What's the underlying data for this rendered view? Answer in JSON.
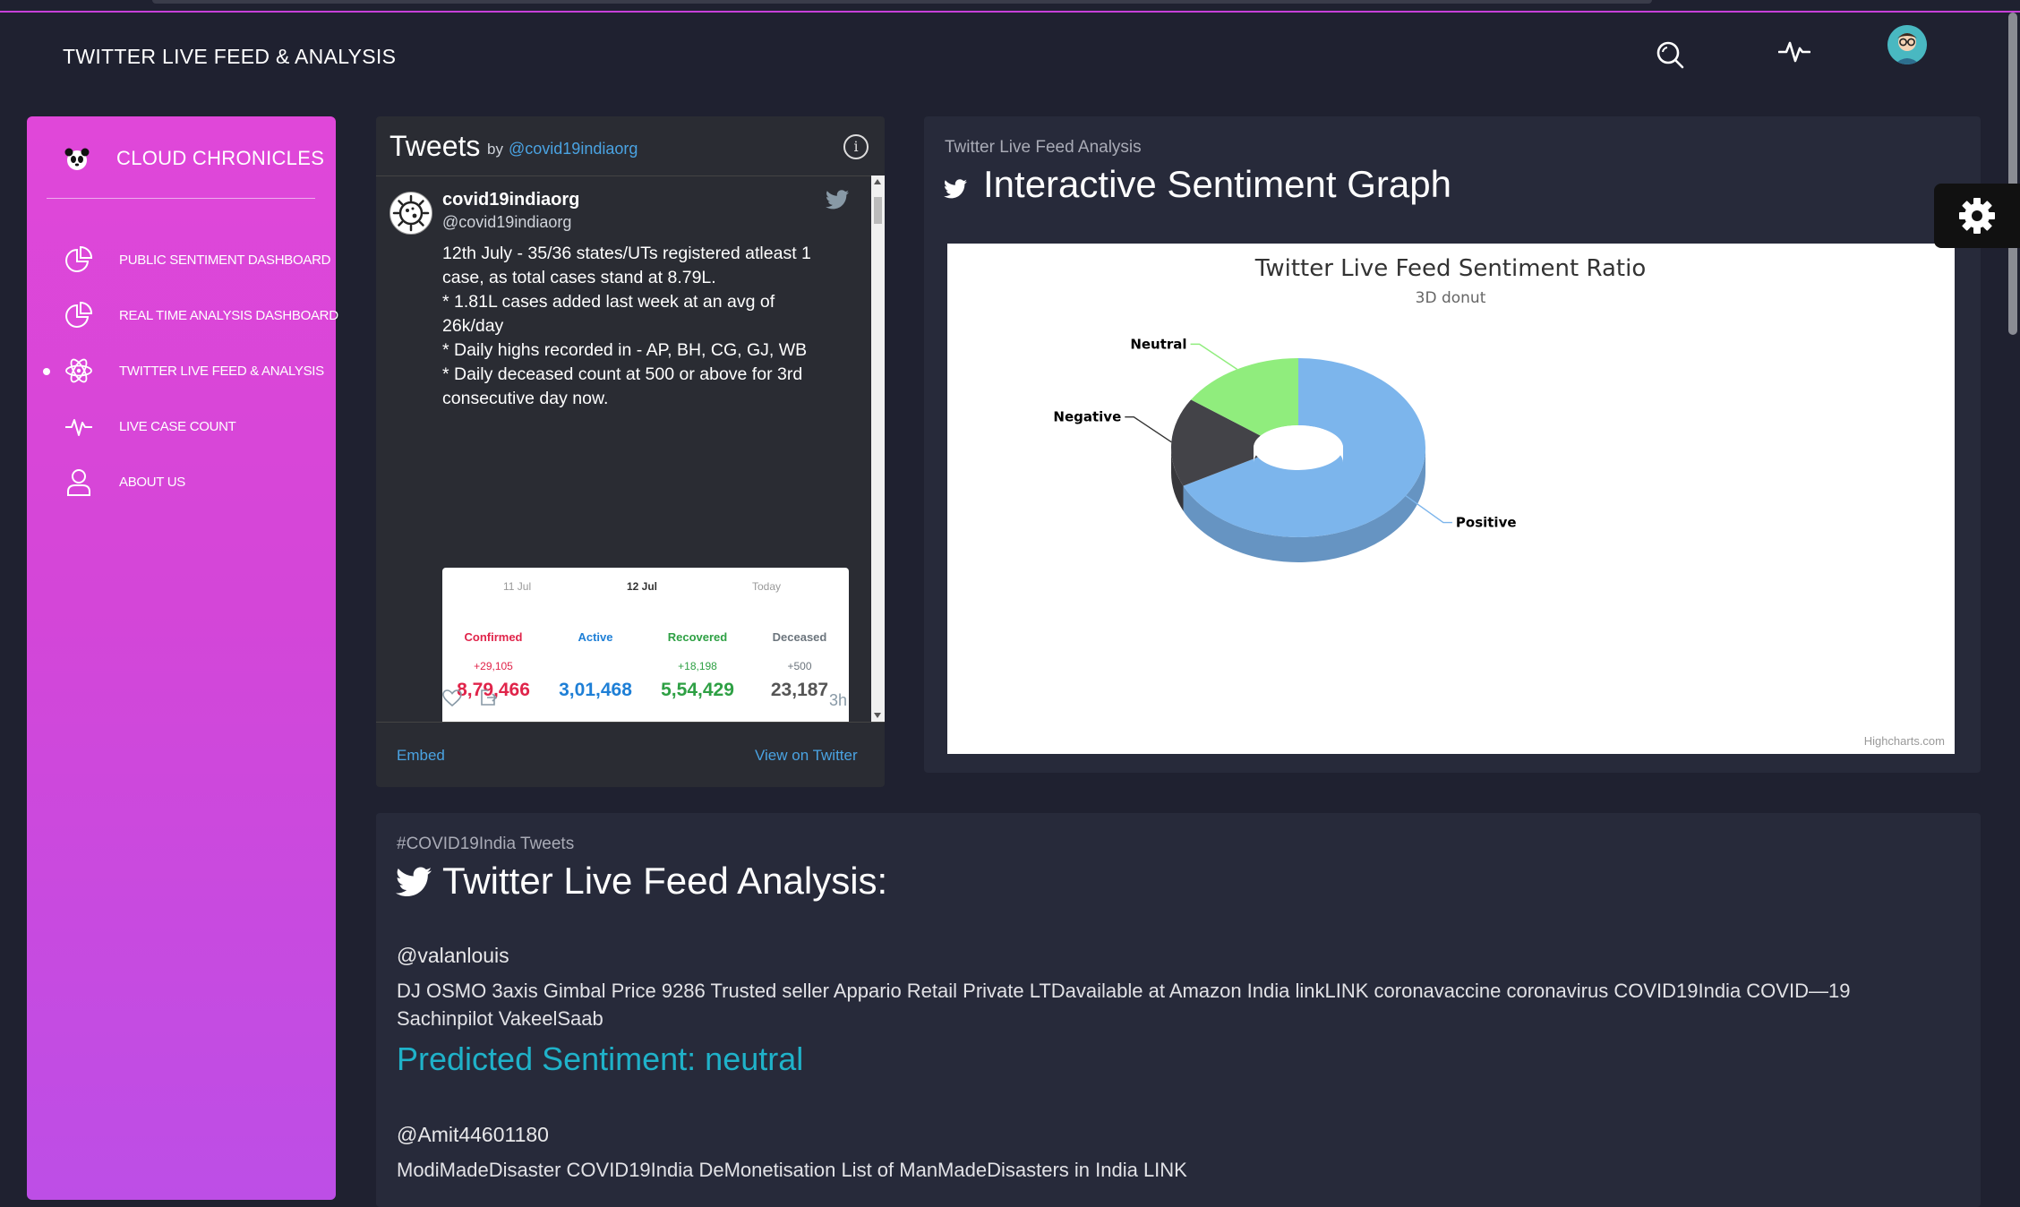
{
  "app": {
    "title": "TWITTER LIVE FEED & ANALYSIS"
  },
  "header_icons": [
    "search-icon",
    "pulse-icon",
    "avatar"
  ],
  "sidebar": {
    "brand": "CLOUD CHRONICLES",
    "items": [
      {
        "label": "PUBLIC SENTIMENT DASHBOARD",
        "icon": "pie-chart-icon",
        "active": false
      },
      {
        "label": "REAL TIME ANALYSIS DASHBOARD",
        "icon": "pie-chart-icon",
        "active": false
      },
      {
        "label": "TWITTER LIVE FEED & ANALYSIS",
        "icon": "atom-icon",
        "active": true
      },
      {
        "label": "LIVE CASE COUNT",
        "icon": "pulse-icon",
        "active": false
      },
      {
        "label": "ABOUT US",
        "icon": "user-icon",
        "active": false
      }
    ]
  },
  "tweets_widget": {
    "title": "Tweets",
    "by": "by",
    "handle_link": "@covid19indiaorg",
    "tweet": {
      "name": "covid19indiaorg",
      "username": "@covid19indiaorg",
      "lines": [
        "12th July - 35/36 states/UTs registered atleast 1",
        "case, as total cases stand at 8.79L.",
        "* 1.81L cases added last week at an avg of",
        "26k/day",
        "* Daily highs recorded in - AP, BH, CG, GJ, WB",
        "* Daily deceased count at 500 or above for 3rd",
        "consecutive day now."
      ],
      "card": {
        "dates": [
          "11 Jul",
          "12 Jul",
          "Today"
        ],
        "stats": [
          {
            "label": "Confirmed",
            "delta": "+29,105",
            "value": "8,79,466",
            "color": "#e0244a"
          },
          {
            "label": "Active",
            "delta": "",
            "value": "3,01,468",
            "color": "#1e7fd6"
          },
          {
            "label": "Recovered",
            "delta": "+18,198",
            "value": "5,54,429",
            "color": "#2ea044"
          },
          {
            "label": "Deceased",
            "delta": "+500",
            "value": "23,187",
            "color": "#6c757d"
          }
        ]
      },
      "time": "3h"
    },
    "embed": "Embed",
    "view_on": "View on Twitter"
  },
  "graph_card": {
    "eyebrow": "Twitter Live Feed Analysis",
    "title": "Interactive Sentiment Graph",
    "credit": "Highcharts.com"
  },
  "chart_data": {
    "type": "pie",
    "title": "Twitter Live Feed Sentiment Ratio",
    "subtitle": "3D donut",
    "slices": [
      {
        "name": "Positive",
        "value": 68,
        "color": "#7cb5ec"
      },
      {
        "name": "Negative",
        "value": 16,
        "color": "#434348"
      },
      {
        "name": "Neutral",
        "value": 16,
        "color": "#90ed7d"
      }
    ]
  },
  "analysis": {
    "eyebrow": "#COVID19India Tweets",
    "title": "Twitter Live Feed Analysis:",
    "tweets": [
      {
        "handle": "@valanlouis",
        "text": "DJ OSMO 3axis Gimbal Price 9286 Trusted seller Appario Retail Private LTDavailable at Amazon India linkLINK coronavaccine coronavirus COVID19India COVID—19 Sachinpilot VakeelSaab",
        "sentiment": "Predicted Sentiment: neutral"
      },
      {
        "handle": "@Amit44601180",
        "text": "ModiMadeDisaster COVID19India DeMonetisation List of ManMadeDisasters in India LINK",
        "sentiment": ""
      }
    ]
  }
}
